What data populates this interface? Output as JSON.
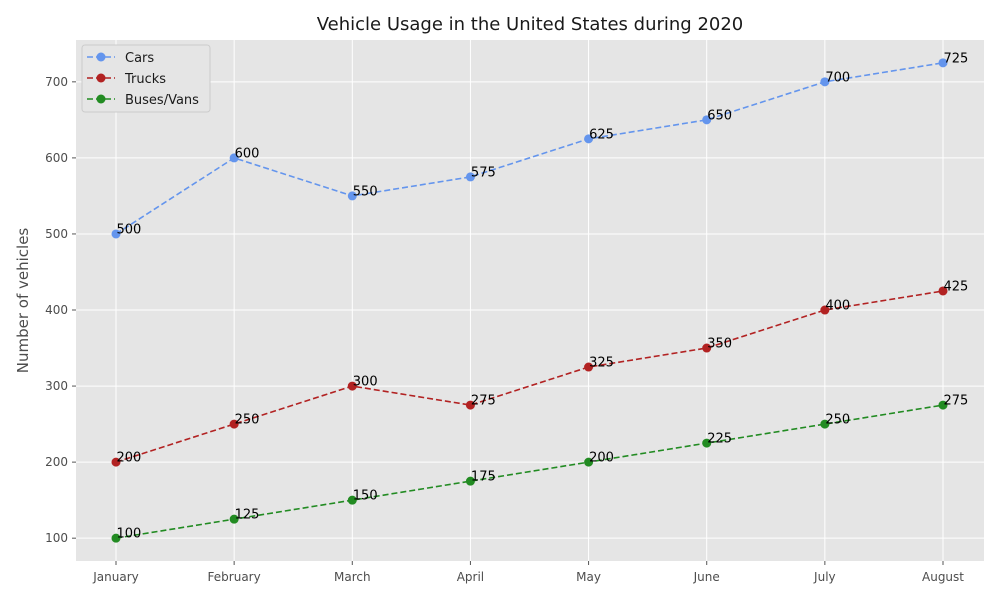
{
  "chart_data": {
    "type": "line",
    "title": "Vehicle Usage in the United States during 2020",
    "xlabel": "",
    "ylabel": "Number of vehicles",
    "categories": [
      "January",
      "February",
      "March",
      "April",
      "May",
      "June",
      "July",
      "August"
    ],
    "ylim": [
      70,
      755
    ],
    "yticks": [
      100,
      200,
      300,
      400,
      500,
      600,
      700
    ],
    "grid": true,
    "legend_position": "top-left",
    "series": [
      {
        "name": "Cars",
        "color": "#6495ed",
        "values": [
          500,
          600,
          550,
          575,
          625,
          650,
          700,
          725
        ]
      },
      {
        "name": "Trucks",
        "color": "#b22222",
        "values": [
          200,
          250,
          300,
          275,
          325,
          350,
          400,
          425
        ]
      },
      {
        "name": "Buses/Vans",
        "color": "#228b22",
        "values": [
          100,
          125,
          150,
          175,
          200,
          225,
          250,
          275
        ]
      }
    ]
  }
}
